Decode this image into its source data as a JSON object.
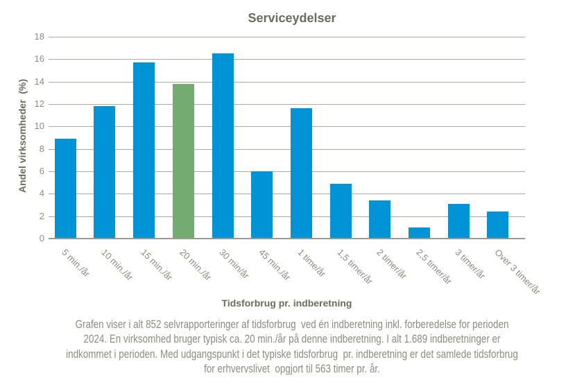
{
  "chart_data": {
    "type": "bar",
    "title": "Serviceydelser",
    "xlabel": "Tidsforbrug pr. indberetning",
    "ylabel": "Andel virksomheder  (%)",
    "categories": [
      "5 min./år",
      "10 min./år",
      "15 min./år",
      "20 min./år",
      "30 min/år",
      "45 min./år",
      "1 time/år",
      "1,5 timer/år",
      "2 timer/år",
      "2,5 timer/år",
      "3 timer/år",
      "Over 3 timer/år"
    ],
    "values": [
      8.9,
      11.8,
      15.7,
      13.8,
      16.5,
      6.0,
      11.6,
      4.9,
      3.4,
      1.0,
      3.1,
      2.4
    ],
    "highlight_index": 3,
    "highlighted_category": "20 min./år",
    "ylim": [
      0,
      18
    ],
    "ytick_step": 2,
    "grid": true,
    "legend_position": "none",
    "colors": {
      "bar": "#0093D6",
      "highlight": "#74AB71",
      "grid": "#A9A89F",
      "axis": "#9B9A91",
      "title_text": "#6B6B5D",
      "tick_text": "#8C8B80",
      "caption_text": "#8C8C80",
      "background": "#FFFFFF"
    }
  },
  "caption": {
    "lines": [
      "Grafen viser i alt 852 selvrapporteringer af tidsforbrug  ved én indberetning inkl. forberedelse for perioden",
      "2024. En virksomhed bruger typisk ca. 20 min./år på denne indberetning. I alt 1.689 indberetninger er",
      "indkommet i perioden. Med udgangspunkt i det typiske tidsforbrug  pr. indberetning er det samlede tidsforbrug",
      "for erhvervslivet  opgjort til 563 timer pr. år."
    ]
  }
}
